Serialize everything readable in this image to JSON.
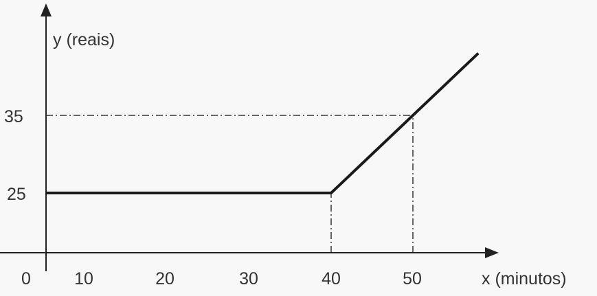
{
  "chart_data": {
    "type": "line",
    "title": "",
    "xlabel": "x (minutos)",
    "ylabel": "y (reais)",
    "x_ticks": [
      "0",
      "10",
      "20",
      "30",
      "40",
      "50"
    ],
    "y_ticks": [
      "25",
      "35"
    ],
    "grid": false,
    "series": [
      {
        "x": [
          0,
          40,
          50,
          58
        ],
        "y": [
          25,
          25,
          35,
          43
        ]
      }
    ],
    "reference_lines": [
      {
        "kind": "vertical",
        "x": 40,
        "from_y": 0,
        "to_y": 25,
        "style": "dash-dot"
      },
      {
        "kind": "vertical",
        "x": 50,
        "from_y": 0,
        "to_y": 35,
        "style": "dash-dot"
      },
      {
        "kind": "horizontal",
        "y": 35,
        "from_x": 0,
        "to_x": 50,
        "style": "dash-dot"
      }
    ],
    "colors": {
      "line": "#1a1a1a",
      "axis": "#222222",
      "text": "#333333",
      "background": "#f8f8f8"
    }
  }
}
